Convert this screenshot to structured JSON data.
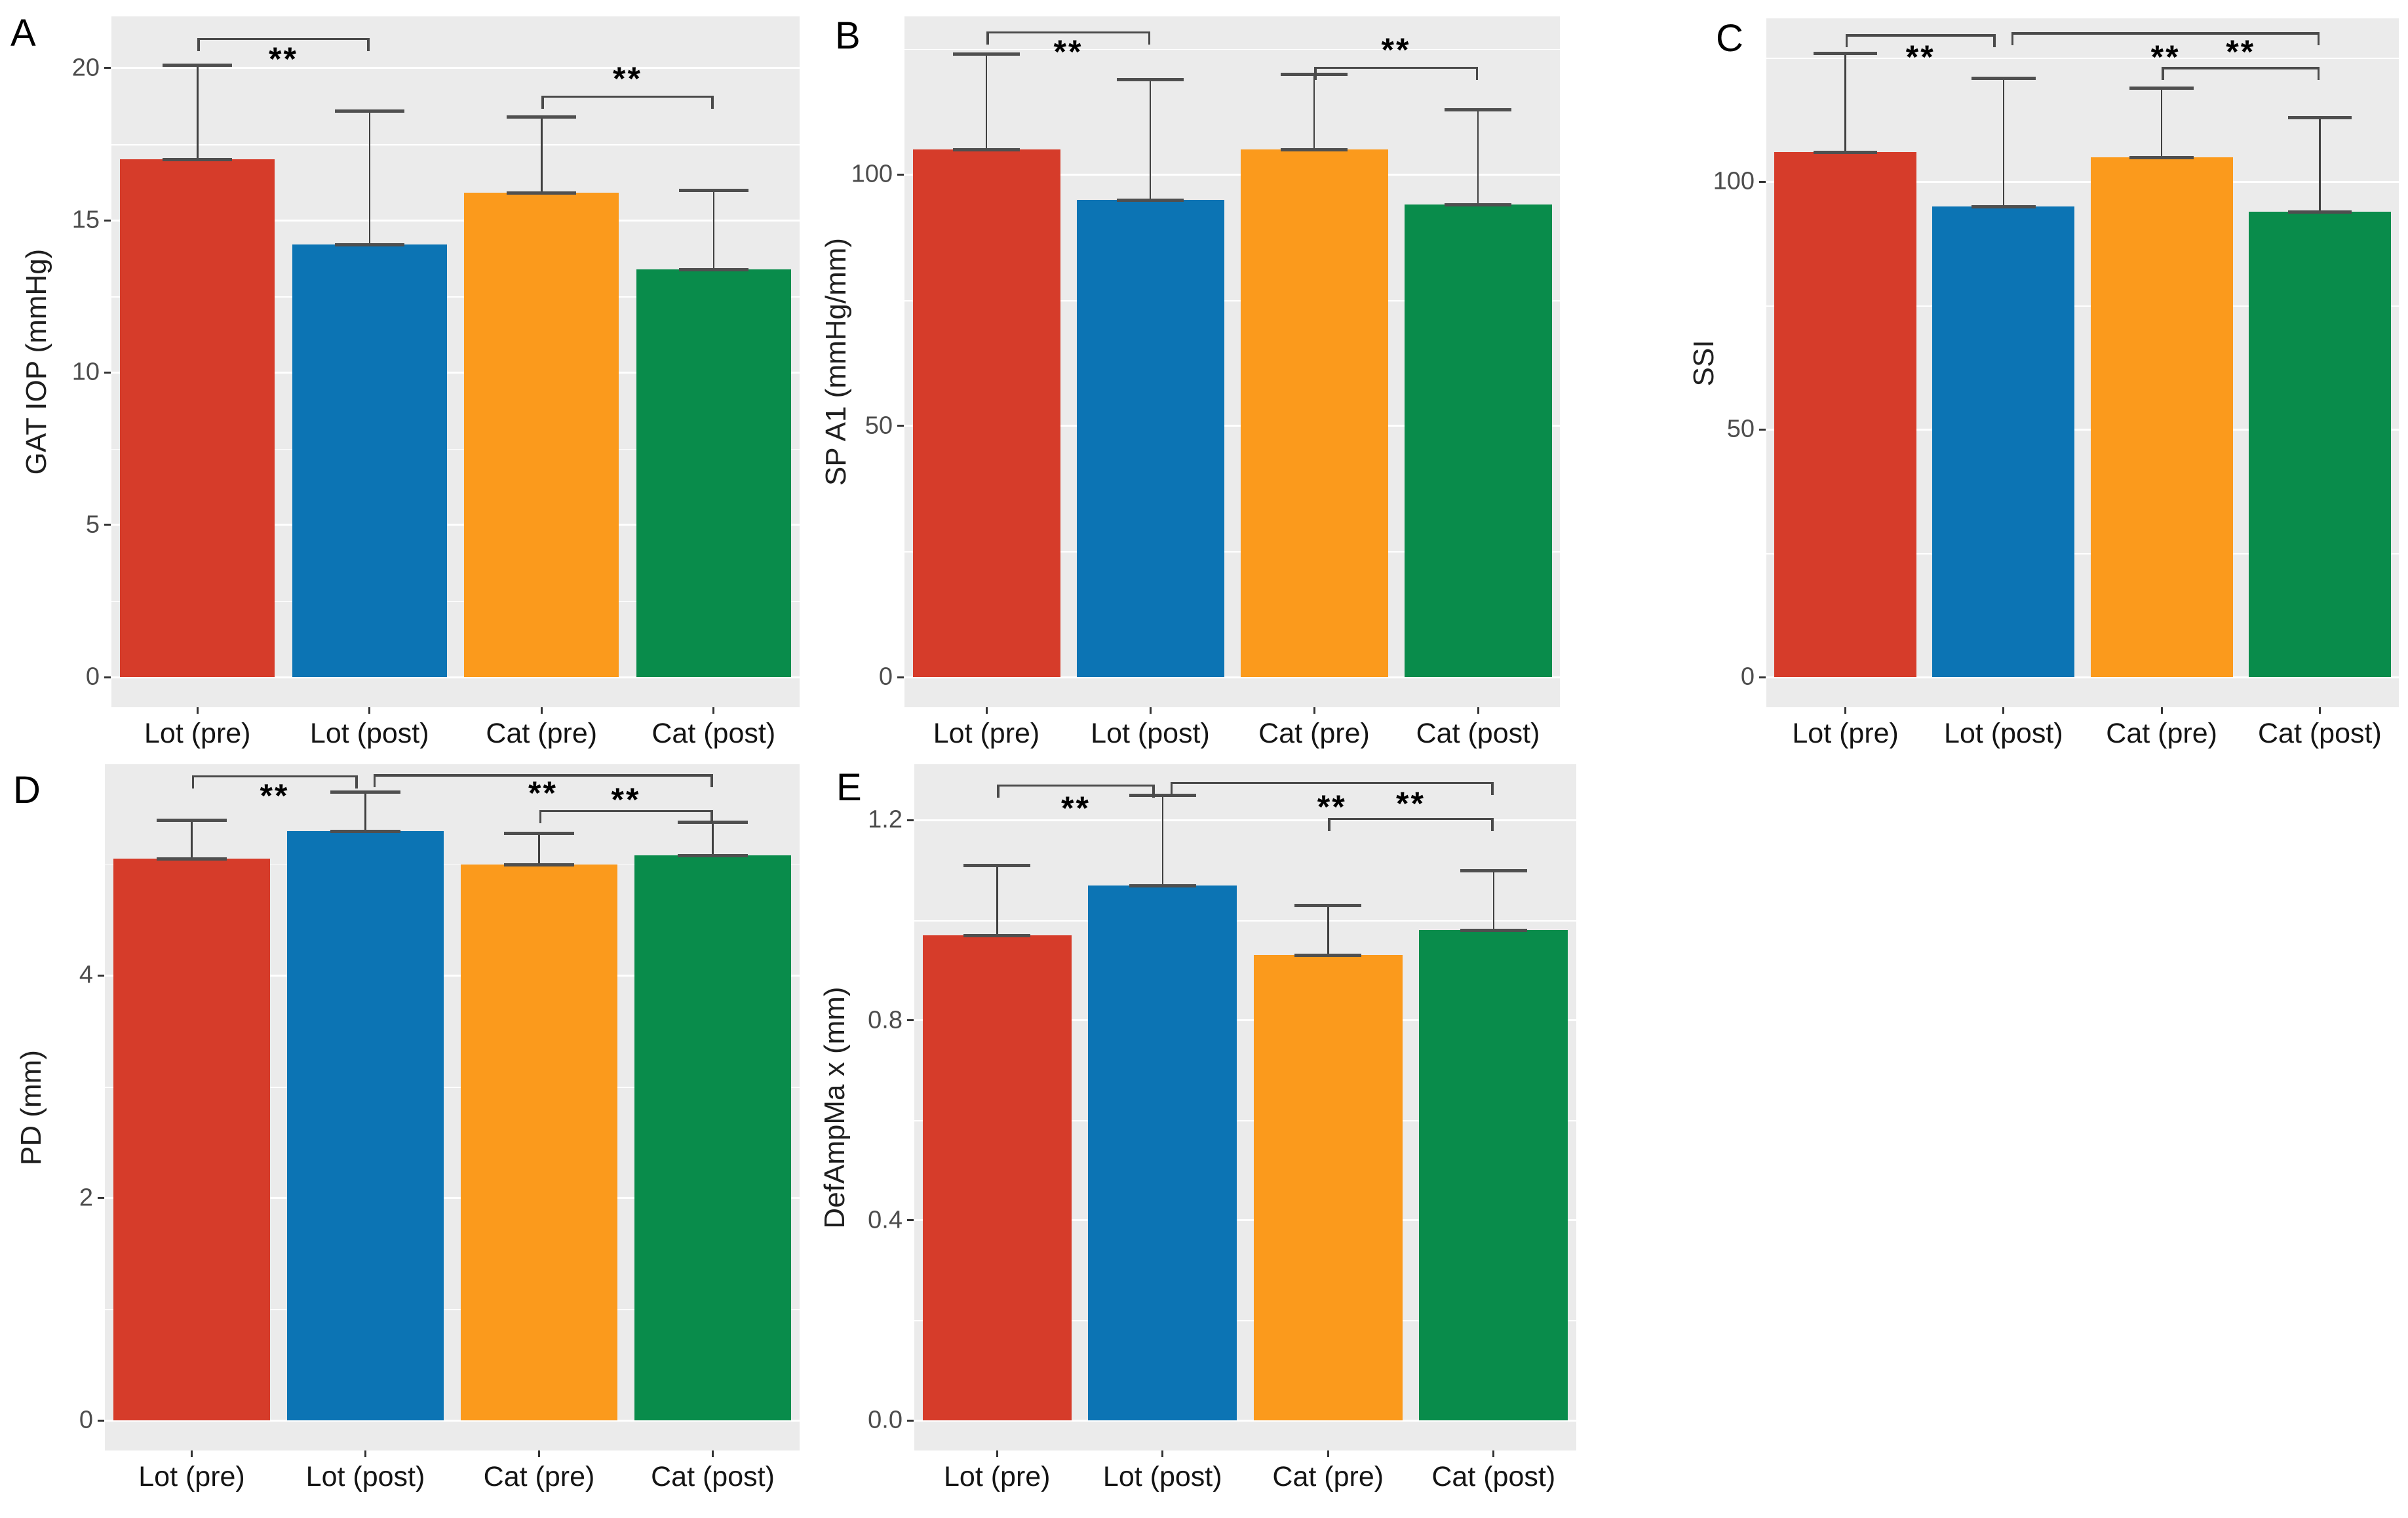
{
  "figure": {
    "background": "#ffffff",
    "panel_background": "#ebebeb",
    "grid_color": "#ffffff",
    "axis_tick_text_color": "#4d4d4d",
    "category_text_color": "#141414",
    "error_bar_color": "#4a4a4a",
    "significance_color": "#000000",
    "series_colors": [
      "#d63c2a",
      "#0c74b4",
      "#fb9a1c",
      "#098c4b"
    ],
    "series_keys": [
      "lot-pre",
      "lot-post",
      "cat-pre",
      "cat-post"
    ]
  },
  "chart_data": [
    {
      "panel": "A",
      "type": "bar",
      "ylabel": "GAT IOP (mmHg)",
      "categories": [
        "Lot (pre)",
        "Lot (post)",
        "Cat (pre)",
        "Cat (post)"
      ],
      "values": [
        17.0,
        14.2,
        15.9,
        13.4
      ],
      "error_top": [
        20.1,
        18.6,
        18.4,
        16.0
      ],
      "ylim": [
        0,
        21.7
      ],
      "yticks": [
        {
          "v": 0,
          "label": "0"
        },
        {
          "v": 5,
          "label": "5"
        },
        {
          "v": 10,
          "label": "10"
        },
        {
          "v": 15,
          "label": "15"
        },
        {
          "v": 20,
          "label": "20"
        }
      ],
      "minor_ticks": [
        2.5,
        7.5,
        12.5,
        17.5
      ],
      "significance": [
        {
          "from": 0,
          "to": 1,
          "label": "**",
          "bracket_y": 21.0,
          "label_y": 20.3,
          "from_offset": 0,
          "to_offset": 0
        },
        {
          "from": 2,
          "to": 3,
          "label": "**",
          "bracket_y": 19.1,
          "label_y": 19.65,
          "from_offset": 0,
          "to_offset": 0
        }
      ]
    },
    {
      "panel": "B",
      "type": "bar",
      "ylabel": "SP A1 (mmHg/mm)",
      "categories": [
        "Lot (pre)",
        "Lot (post)",
        "Cat (pre)",
        "Cat (post)"
      ],
      "values": [
        105,
        95,
        105,
        94
      ],
      "error_top": [
        124,
        119,
        120,
        113
      ],
      "ylim": [
        0,
        131.5
      ],
      "yticks": [
        {
          "v": 0,
          "label": "0"
        },
        {
          "v": 50,
          "label": "50"
        },
        {
          "v": 100,
          "label": "100"
        }
      ],
      "minor_ticks": [
        25,
        75,
        125
      ],
      "significance": [
        {
          "from": 0,
          "to": 1,
          "label": "**",
          "bracket_y": 128.5,
          "label_y": 124.5,
          "from_offset": 0,
          "to_offset": 0
        },
        {
          "from": 2,
          "to": 3,
          "label": "**",
          "bracket_y": 121.5,
          "label_y": 124.8,
          "from_offset": 0,
          "to_offset": 0
        }
      ]
    },
    {
      "panel": "C",
      "type": "bar",
      "ylabel": "SSI",
      "categories": [
        "Lot (pre)",
        "Lot (post)",
        "Cat (pre)",
        "Cat (post)"
      ],
      "values": [
        106,
        95,
        105,
        94
      ],
      "error_top": [
        126,
        121,
        119,
        113
      ],
      "ylim": [
        0,
        133
      ],
      "yticks": [
        {
          "v": 0,
          "label": "0"
        },
        {
          "v": 50,
          "label": "50"
        },
        {
          "v": 100,
          "label": "100"
        }
      ],
      "minor_ticks": [
        25,
        75,
        125
      ],
      "significance": [
        {
          "from": 0,
          "to": 1,
          "label": "**",
          "bracket_y": 129.8,
          "label_y": 125.2,
          "from_offset": 0,
          "to_offset": -12
        },
        {
          "from": 1,
          "to": 3,
          "label": "**",
          "bracket_y": 130.2,
          "label_y": 125.2,
          "from_offset": 12,
          "to_offset": 0
        },
        {
          "from": 2,
          "to": 3,
          "label": "**",
          "bracket_y": 123.2,
          "label_y": 126.2,
          "from_offset": 0,
          "to_offset": 0
        }
      ]
    },
    {
      "panel": "D",
      "type": "bar",
      "ylabel": "PD (mm)",
      "categories": [
        "Lot (pre)",
        "Lot (post)",
        "Cat (pre)",
        "Cat (post)"
      ],
      "values": [
        5.05,
        5.3,
        5.0,
        5.08
      ],
      "error_top": [
        5.4,
        5.65,
        5.28,
        5.38
      ],
      "ylim": [
        0,
        5.9
      ],
      "yticks": [
        {
          "v": 0,
          "label": "0"
        },
        {
          "v": 2,
          "label": "2"
        },
        {
          "v": 4,
          "label": "4"
        }
      ],
      "minor_ticks": [
        1,
        3,
        5
      ],
      "significance": [
        {
          "from": 0,
          "to": 1,
          "label": "**",
          "bracket_y": 5.8,
          "label_y": 5.62,
          "from_offset": 0,
          "to_offset": -12
        },
        {
          "from": 1,
          "to": 3,
          "label": "**",
          "bracket_y": 5.81,
          "label_y": 5.64,
          "from_offset": 12,
          "to_offset": 0
        },
        {
          "from": 2,
          "to": 3,
          "label": "**",
          "bracket_y": 5.49,
          "label_y": 5.58,
          "from_offset": 0,
          "to_offset": 0
        }
      ]
    },
    {
      "panel": "E",
      "type": "bar",
      "ylabel": "DefAmpMa x (mm)",
      "categories": [
        "Lot (pre)",
        "Lot (post)",
        "Cat (pre)",
        "Cat (post)"
      ],
      "values": [
        0.97,
        1.07,
        0.93,
        0.98
      ],
      "error_top": [
        1.11,
        1.25,
        1.03,
        1.1
      ],
      "ylim": [
        0,
        1.312
      ],
      "yticks": [
        {
          "v": 0,
          "label": "0.0"
        },
        {
          "v": 0.4,
          "label": "0.4"
        },
        {
          "v": 0.8,
          "label": "0.8"
        },
        {
          "v": 1.2,
          "label": "1.2"
        }
      ],
      "minor_ticks": [
        0.2,
        0.6,
        1.0
      ],
      "significance": [
        {
          "from": 0,
          "to": 1,
          "label": "**",
          "bracket_y": 1.272,
          "label_y": 1.224,
          "from_offset": 0,
          "to_offset": -12
        },
        {
          "from": 1,
          "to": 3,
          "label": "**",
          "bracket_y": 1.277,
          "label_y": 1.227,
          "from_offset": 12,
          "to_offset": 0
        },
        {
          "from": 2,
          "to": 3,
          "label": "**",
          "bracket_y": 1.205,
          "label_y": 1.233,
          "from_offset": 0,
          "to_offset": 0
        }
      ]
    }
  ]
}
